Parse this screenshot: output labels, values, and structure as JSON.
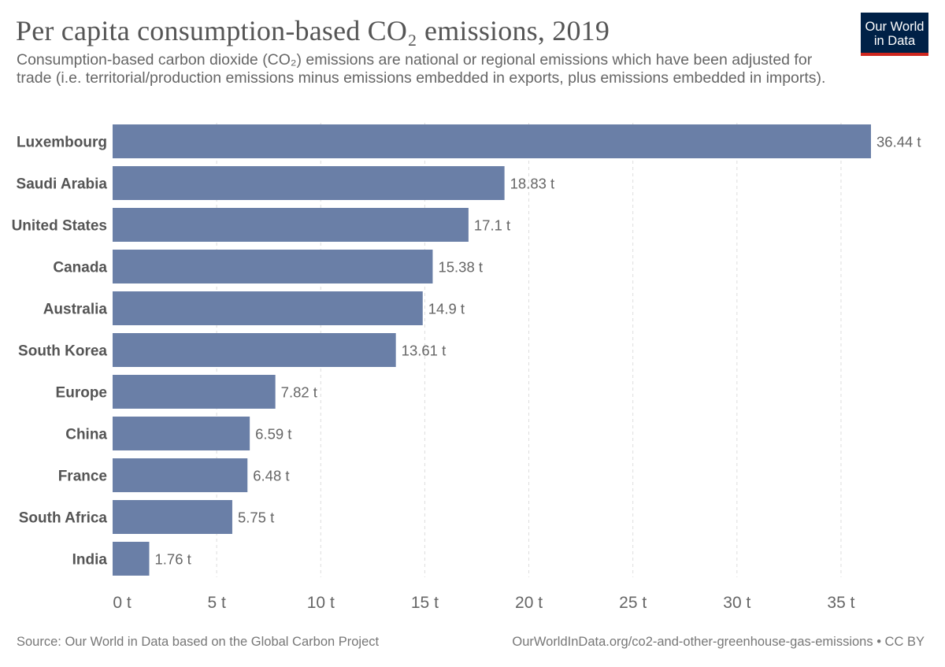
{
  "header": {
    "title": "Per capita consumption-based CO₂ emissions, 2019",
    "subtitle": "Consumption-based carbon dioxide (CO₂) emissions are national or regional emissions which have been adjusted for trade (i.e. territorial/production emissions minus emissions embedded in exports, plus emissions embedded in imports).",
    "logo_line1": "Our World",
    "logo_line2": "in Data"
  },
  "colors": {
    "bar": "#6a7fa7",
    "grid": "#dddddd",
    "logo_bg": "#002147",
    "logo_accent": "#ce261e"
  },
  "chart_data": {
    "type": "bar",
    "orientation": "horizontal",
    "categories": [
      "Luxembourg",
      "Saudi Arabia",
      "United States",
      "Canada",
      "Australia",
      "South Korea",
      "Europe",
      "China",
      "France",
      "South Africa",
      "India"
    ],
    "values": [
      36.44,
      18.83,
      17.1,
      15.38,
      14.9,
      13.61,
      7.82,
      6.59,
      6.48,
      5.75,
      1.76
    ],
    "value_labels": [
      "36.44 t",
      "18.83 t",
      "17.1 t",
      "15.38 t",
      "14.9 t",
      "13.61 t",
      "7.82 t",
      "6.59 t",
      "6.48 t",
      "5.75 t",
      "1.76 t"
    ],
    "xlim": [
      0,
      36.44
    ],
    "xticks": [
      0,
      5,
      10,
      15,
      20,
      25,
      30,
      35
    ],
    "xtick_labels": [
      "0 t",
      "5 t",
      "10 t",
      "15 t",
      "20 t",
      "25 t",
      "30 t",
      "35 t"
    ],
    "grid": "vertical dashed",
    "legend": "none"
  },
  "footer": {
    "source": "Source: Our World in Data based on the Global Carbon Project",
    "url_license": "OurWorldInData.org/co2-and-other-greenhouse-gas-emissions • CC BY"
  }
}
